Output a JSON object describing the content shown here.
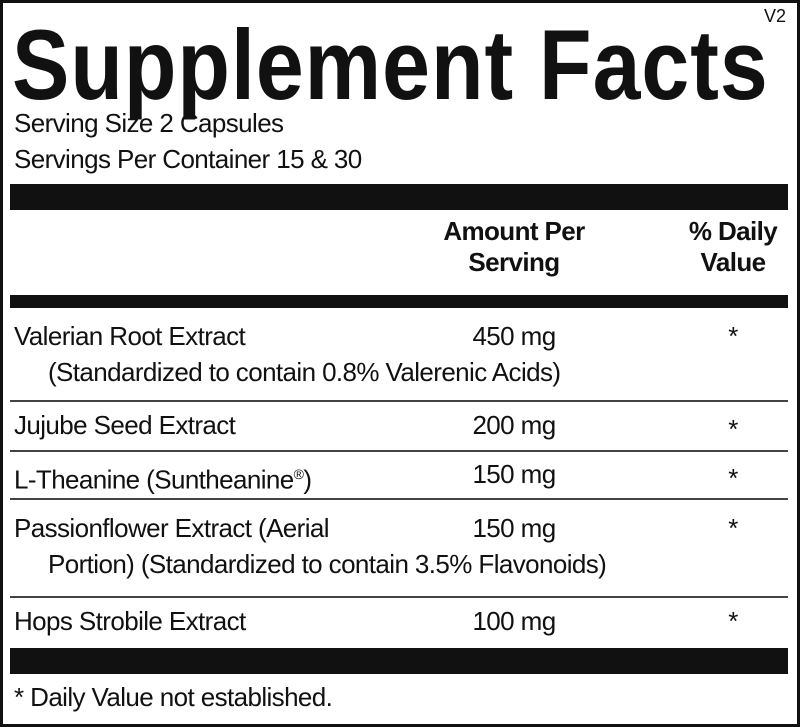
{
  "title": "Supplement Facts",
  "version": "V2",
  "serving_size": "Serving Size 2 Capsules",
  "servings_per_container": "Servings Per Container 15  & 30",
  "header": {
    "amount_line1": "Amount Per",
    "amount_line2": "Serving",
    "dv_line1": "% Daily",
    "dv_line2": "Value"
  },
  "rows": [
    {
      "name": "Valerian Root Extract",
      "sub": "(Standardized to contain 0.8% Valerenic Acids)",
      "amount": "450 mg",
      "dv": "*"
    },
    {
      "name": "Jujube Seed Extract",
      "amount": "200 mg",
      "dv": "*"
    },
    {
      "name": "L-Theanine (Suntheanine",
      "mark": "®",
      "name_end": ")",
      "amount": "150 mg",
      "dv": "*"
    },
    {
      "name": "Passionflower Extract (Aerial",
      "sub": "Portion) (Standardized to contain 3.5% Flavonoids)",
      "amount": "150 mg",
      "dv": "*"
    },
    {
      "name": "Hops Strobile Extract",
      "amount": "100 mg",
      "dv": "*"
    }
  ],
  "footnote": "* Daily Value not established."
}
